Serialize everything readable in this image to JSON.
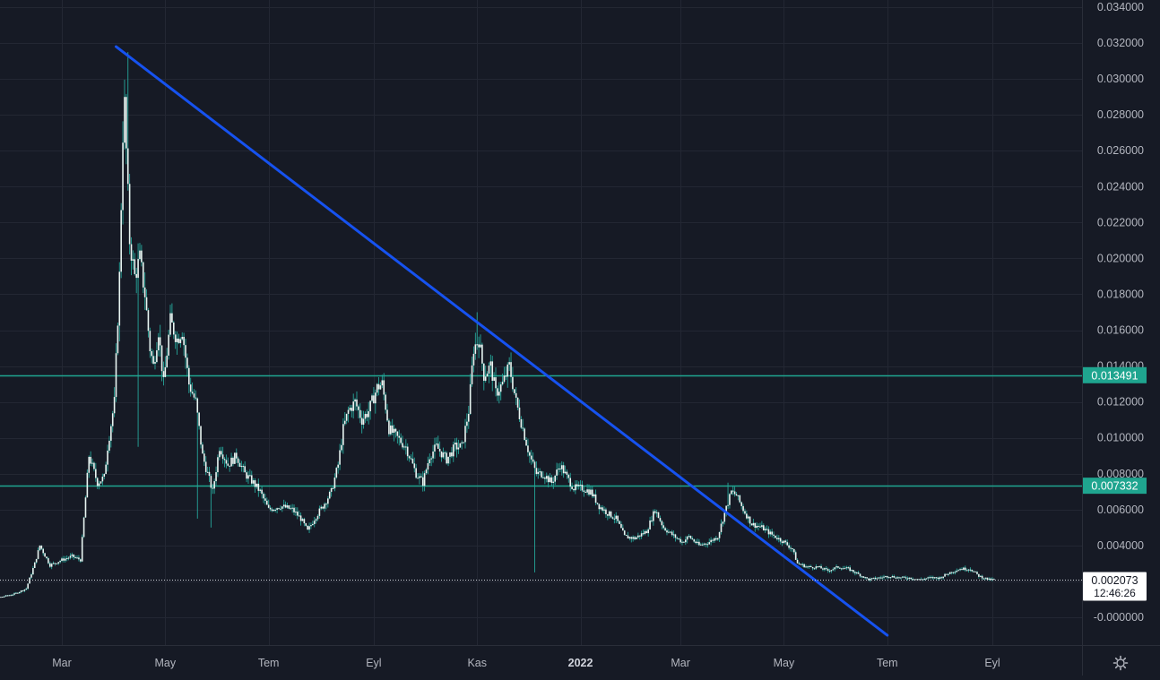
{
  "colors": {
    "background": "#161a25",
    "grid": "#232733",
    "axis_text": "#b2b5be",
    "candle": "#e8f5f2",
    "candle_wick": "#26a69a",
    "hline": "#1fa58f",
    "trendline": "#1652f0",
    "last_price_bg": "#ffffff",
    "last_price_text": "#131722"
  },
  "icons": {
    "settings": "gear-icon"
  },
  "chart_data": {
    "type": "candlestick",
    "title": "",
    "xlabel": "",
    "ylabel": "",
    "ylim": [
      -0.0005,
      0.0345
    ],
    "y_ticks": [
      "0.034000",
      "0.032000",
      "0.030000",
      "0.028000",
      "0.026000",
      "0.024000",
      "0.022000",
      "0.020000",
      "0.018000",
      "0.016000",
      "0.014000",
      "0.012000",
      "0.010000",
      "0.008000",
      "0.006000",
      "0.004000",
      "0.002000",
      "-0.000000"
    ],
    "y_tick_values": [
      0.034,
      0.032,
      0.03,
      0.028,
      0.026,
      0.024,
      0.022,
      0.02,
      0.018,
      0.016,
      0.014,
      0.012,
      0.01,
      0.008,
      0.006,
      0.004,
      0.002,
      0.0
    ],
    "x_ticks": [
      {
        "label": "Mar",
        "date": "2021-03-01",
        "bold": false
      },
      {
        "label": "May",
        "date": "2021-05-01",
        "bold": false
      },
      {
        "label": "Tem",
        "date": "2021-07-01",
        "bold": false
      },
      {
        "label": "Eyl",
        "date": "2021-09-01",
        "bold": false
      },
      {
        "label": "Kas",
        "date": "2021-11-01",
        "bold": false
      },
      {
        "label": "2022",
        "date": "2022-01-01",
        "bold": true
      },
      {
        "label": "Mar",
        "date": "2022-03-01",
        "bold": false
      },
      {
        "label": "May",
        "date": "2022-05-01",
        "bold": false
      },
      {
        "label": "Tem",
        "date": "2022-07-01",
        "bold": false
      },
      {
        "label": "Eyl",
        "date": "2022-09-01",
        "bold": false
      }
    ],
    "price_path": [
      [
        "2021-01-07",
        0.0008
      ],
      [
        "2021-01-18",
        0.001
      ],
      [
        "2021-02-01",
        0.0013
      ],
      [
        "2021-02-08",
        0.0016
      ],
      [
        "2021-02-13",
        0.003
      ],
      [
        "2021-02-16",
        0.004
      ],
      [
        "2021-02-22",
        0.0029
      ],
      [
        "2021-03-01",
        0.0032
      ],
      [
        "2021-03-07",
        0.0034
      ],
      [
        "2021-03-12",
        0.0032
      ],
      [
        "2021-03-14",
        0.0055
      ],
      [
        "2021-03-17",
        0.009
      ],
      [
        "2021-03-22",
        0.0075
      ],
      [
        "2021-03-26",
        0.0078
      ],
      [
        "2021-03-28",
        0.0095
      ],
      [
        "2021-04-01",
        0.012
      ],
      [
        "2021-04-04",
        0.019
      ],
      [
        "2021-04-06",
        0.027
      ],
      [
        "2021-04-07",
        0.0285
      ],
      [
        "2021-04-10",
        0.021
      ],
      [
        "2021-04-13",
        0.019
      ],
      [
        "2021-04-16",
        0.02
      ],
      [
        "2021-04-19",
        0.018
      ],
      [
        "2021-04-22",
        0.015
      ],
      [
        "2021-04-24",
        0.014
      ],
      [
        "2021-04-27",
        0.016
      ],
      [
        "2021-04-30",
        0.013
      ],
      [
        "2021-05-04",
        0.0165
      ],
      [
        "2021-05-08",
        0.0155
      ],
      [
        "2021-05-11",
        0.016
      ],
      [
        "2021-05-15",
        0.013
      ],
      [
        "2021-05-19",
        0.012
      ],
      [
        "2021-05-23",
        0.009
      ],
      [
        "2021-05-26",
        0.008
      ],
      [
        "2021-05-29",
        0.007
      ],
      [
        "2021-06-02",
        0.0095
      ],
      [
        "2021-06-07",
        0.0085
      ],
      [
        "2021-06-12",
        0.009
      ],
      [
        "2021-06-17",
        0.008
      ],
      [
        "2021-06-22",
        0.0075
      ],
      [
        "2021-06-26",
        0.007
      ],
      [
        "2021-07-01",
        0.006
      ],
      [
        "2021-07-08",
        0.0062
      ],
      [
        "2021-07-15",
        0.006
      ],
      [
        "2021-07-20",
        0.0055
      ],
      [
        "2021-07-24",
        0.0048
      ],
      [
        "2021-07-28",
        0.0055
      ],
      [
        "2021-08-02",
        0.0062
      ],
      [
        "2021-08-07",
        0.007
      ],
      [
        "2021-08-11",
        0.0085
      ],
      [
        "2021-08-14",
        0.0105
      ],
      [
        "2021-08-17",
        0.0115
      ],
      [
        "2021-08-21",
        0.012
      ],
      [
        "2021-08-25",
        0.011
      ],
      [
        "2021-08-29",
        0.0115
      ],
      [
        "2021-09-03",
        0.0128
      ],
      [
        "2021-09-06",
        0.013
      ],
      [
        "2021-09-10",
        0.0105
      ],
      [
        "2021-09-15",
        0.01
      ],
      [
        "2021-09-20",
        0.0095
      ],
      [
        "2021-09-26",
        0.008
      ],
      [
        "2021-09-30",
        0.0075
      ],
      [
        "2021-10-04",
        0.009
      ],
      [
        "2021-10-08",
        0.0095
      ],
      [
        "2021-10-14",
        0.0088
      ],
      [
        "2021-10-19",
        0.0095
      ],
      [
        "2021-10-23",
        0.0095
      ],
      [
        "2021-10-27",
        0.0115
      ],
      [
        "2021-10-30",
        0.015
      ],
      [
        "2021-11-02",
        0.0155
      ],
      [
        "2021-11-05",
        0.0135
      ],
      [
        "2021-11-09",
        0.014
      ],
      [
        "2021-11-12",
        0.0125
      ],
      [
        "2021-11-16",
        0.013
      ],
      [
        "2021-11-20",
        0.014
      ],
      [
        "2021-11-24",
        0.012
      ],
      [
        "2021-11-28",
        0.0105
      ],
      [
        "2021-12-02",
        0.009
      ],
      [
        "2021-12-06",
        0.008
      ],
      [
        "2021-12-10",
        0.008
      ],
      [
        "2021-12-15",
        0.0075
      ],
      [
        "2021-12-20",
        0.0085
      ],
      [
        "2021-12-24",
        0.0078
      ],
      [
        "2021-12-28",
        0.0072
      ],
      [
        "2022-01-02",
        0.0072
      ],
      [
        "2022-01-07",
        0.007
      ],
      [
        "2022-01-12",
        0.0062
      ],
      [
        "2022-01-17",
        0.0058
      ],
      [
        "2022-01-22",
        0.0055
      ],
      [
        "2022-01-27",
        0.0045
      ],
      [
        "2022-02-02",
        0.0044
      ],
      [
        "2022-02-09",
        0.0048
      ],
      [
        "2022-02-14",
        0.006
      ],
      [
        "2022-02-19",
        0.005
      ],
      [
        "2022-02-24",
        0.0046
      ],
      [
        "2022-03-02",
        0.0042
      ],
      [
        "2022-03-06",
        0.0045
      ],
      [
        "2022-03-12",
        0.004
      ],
      [
        "2022-03-18",
        0.0042
      ],
      [
        "2022-03-23",
        0.0045
      ],
      [
        "2022-03-27",
        0.0058
      ],
      [
        "2022-03-31",
        0.007
      ],
      [
        "2022-04-03",
        0.0068
      ],
      [
        "2022-04-07",
        0.006
      ],
      [
        "2022-04-12",
        0.0052
      ],
      [
        "2022-04-18",
        0.005
      ],
      [
        "2022-04-24",
        0.0046
      ],
      [
        "2022-05-01",
        0.0042
      ],
      [
        "2022-05-06",
        0.0038
      ],
      [
        "2022-05-09",
        0.003
      ],
      [
        "2022-05-15",
        0.0028
      ],
      [
        "2022-05-21",
        0.0028
      ],
      [
        "2022-05-27",
        0.0026
      ],
      [
        "2022-06-02",
        0.0028
      ],
      [
        "2022-06-08",
        0.0027
      ],
      [
        "2022-06-14",
        0.0024
      ],
      [
        "2022-06-20",
        0.0021
      ],
      [
        "2022-06-26",
        0.0022
      ],
      [
        "2022-07-02",
        0.0023
      ],
      [
        "2022-07-08",
        0.0022
      ],
      [
        "2022-07-14",
        0.0022
      ],
      [
        "2022-07-20",
        0.0021
      ],
      [
        "2022-07-26",
        0.0022
      ],
      [
        "2022-08-01",
        0.0022
      ],
      [
        "2022-08-07",
        0.0025
      ],
      [
        "2022-08-13",
        0.0027
      ],
      [
        "2022-08-19",
        0.0027
      ],
      [
        "2022-08-24",
        0.0023
      ],
      [
        "2022-08-30",
        0.0021
      ],
      [
        "2022-09-02",
        0.0021
      ]
    ],
    "spikes": [
      {
        "date": "2021-04-09",
        "high": 0.0315
      },
      {
        "date": "2021-04-15",
        "low": 0.0095
      },
      {
        "date": "2021-05-20",
        "low": 0.0055
      },
      {
        "date": "2021-05-28",
        "low": 0.005
      },
      {
        "date": "2021-11-01",
        "high": 0.017
      },
      {
        "date": "2021-12-05",
        "low": 0.0025
      },
      {
        "date": "2022-03-29",
        "high": 0.0075
      }
    ],
    "horizontal_lines": [
      {
        "price": 0.013491,
        "label": "0.013491"
      },
      {
        "price": 0.007332,
        "label": "0.007332"
      }
    ],
    "trendline": {
      "start": [
        "2021-04-02",
        0.0318
      ],
      "end": [
        "2022-07-01",
        -0.001
      ]
    },
    "last_price": {
      "price": 0.002073,
      "label": "0.002073",
      "countdown": "12:46:26"
    }
  }
}
